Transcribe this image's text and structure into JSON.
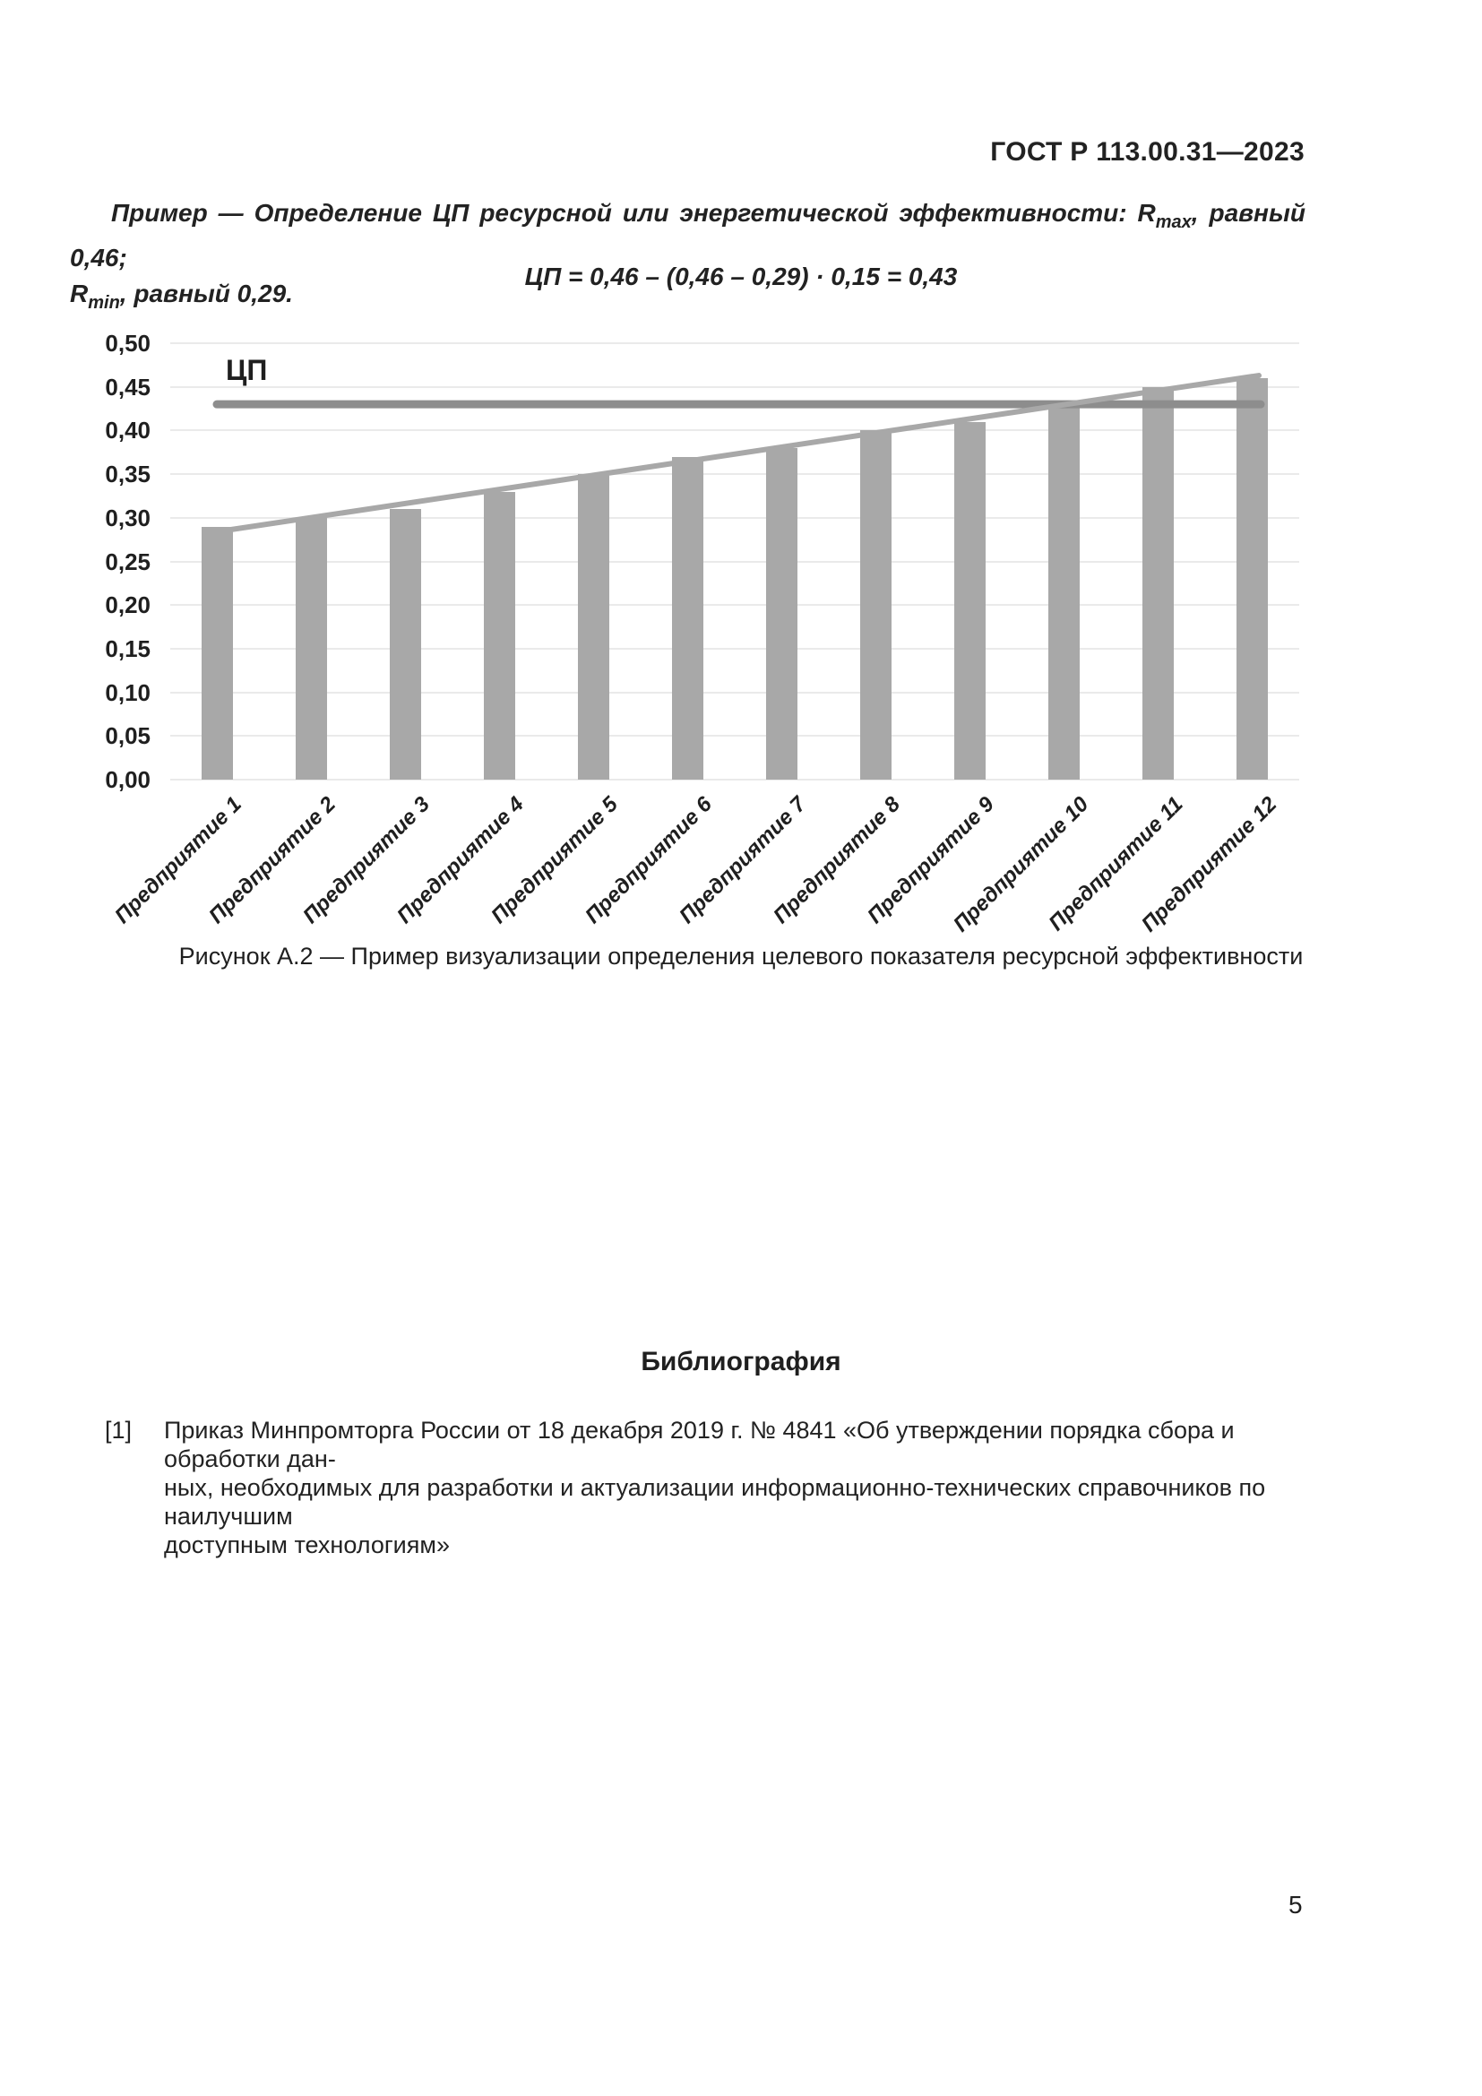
{
  "page": {
    "header": "ГОСТ Р 113.00.31—2023",
    "page_number": "5"
  },
  "example": {
    "line1_pre": "Пример — Определение ЦП ресурсной или энергетической эффективности: R",
    "line1_sub": "max",
    "line1_post": ", равный 0,46;",
    "line2_pre": "R",
    "line2_sub": "min",
    "line2_post": ", равный 0,29.",
    "formula": "ЦП = 0,46 – (0,46 – 0,29) · 0,15 = 0,43"
  },
  "chart_data": {
    "type": "bar",
    "title": "",
    "xlabel": "",
    "ylabel": "",
    "categories": [
      "Предприятие 1",
      "Предприятие 2",
      "Предприятие 3",
      "Предприятие 4",
      "Предприятие 5",
      "Предприятие 6",
      "Предприятие 7",
      "Предприятие 8",
      "Предприятие 9",
      "Предприятие 10",
      "Предприятие 11",
      "Предприятие 12"
    ],
    "values": [
      0.29,
      0.3,
      0.31,
      0.33,
      0.35,
      0.37,
      0.38,
      0.4,
      0.41,
      0.43,
      0.45,
      0.46
    ],
    "ylim": [
      0,
      0.5
    ],
    "ytick_step": 0.05,
    "ytick_labels": [
      "0,00",
      "0,05",
      "0,10",
      "0,15",
      "0,20",
      "0,25",
      "0,30",
      "0,35",
      "0,40",
      "0,45",
      "0,50"
    ],
    "grid": true,
    "legend_position": "none",
    "target_line": {
      "label": "ЦП",
      "value": 0.43
    },
    "trend_line": {
      "start_value": 0.284,
      "end_value": 0.463
    },
    "colors": {
      "bar": "#a8a8a8",
      "target_line": "#8d8d8d",
      "trend_line": "#a8a8a8",
      "gridline": "#eaeaea",
      "text": "#1f1f1f"
    }
  },
  "caption": "Рисунок А.2 — Пример визуализации определения целевого показателя ресурсной эффективности",
  "bibliography": {
    "heading": "Библиография",
    "ref_marker": "[1]",
    "ref_lines": [
      "Приказ Минпромторга России от 18 декабря 2019 г. № 4841 «Об утверждении порядка сбора и обработки дан-",
      "ных, необходимых для разработки и актуализации информационно-технических справочников по наилучшим",
      "доступным технологиям»"
    ]
  }
}
